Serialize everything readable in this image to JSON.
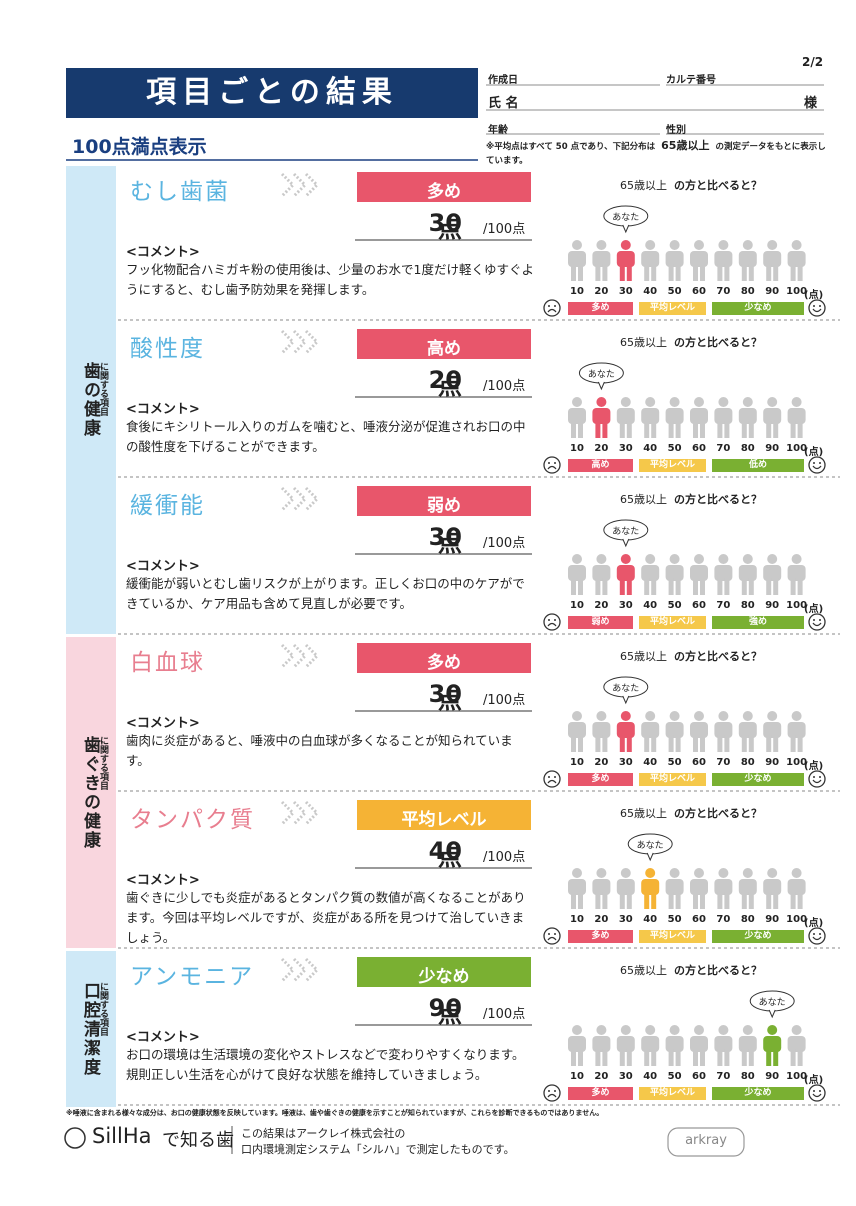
{
  "header": {
    "title": "項目ごとの結果",
    "page": "2/2",
    "subtitle": "100点満点表示",
    "created_label": "作成日",
    "chart_no_label": "カルテ番号",
    "name_label": "氏 名",
    "honorific": "様",
    "age_label": "年齢",
    "sex_label": "性別",
    "note_prefix": "※平均点はすべて 50 点であり、下記分布は",
    "note_age": "65歳以上",
    "note_suffix": "の測定データをもとに表示しています。"
  },
  "common": {
    "comment_label": "<コメント>",
    "max": "/100点",
    "score_unit": "点",
    "compare_age": "65歳以上",
    "compare_text": "の方と比べると？",
    "you": "あなた",
    "scale": [
      10,
      20,
      30,
      40,
      50,
      60,
      70,
      80,
      90,
      100
    ],
    "scale_unit": "(点)"
  },
  "groups": [
    {
      "label": "歯の健康",
      "sub": "に関する項目",
      "color": "#5ab4e0",
      "bg": "#cfe9f7",
      "items": [
        {
          "name": "むし歯菌",
          "level": "多め",
          "color": "#e8566b",
          "score": 30,
          "comment": "フッ化物配合ハミガキ粉の使用後は、少量のお水で1度だけ軽くゆすぐようにすると、むし歯予防効果を発揮します。",
          "bar_labels": [
            "多め",
            "平均レベル",
            "少なめ"
          ]
        },
        {
          "name": "酸性度",
          "level": "高め",
          "color": "#e8566b",
          "score": 20,
          "comment": "食後にキシリトール入りのガムを噛むと、唾液分泌が促進されお口の中の酸性度を下げることができます。",
          "bar_labels": [
            "高め",
            "平均レベル",
            "低め"
          ]
        },
        {
          "name": "緩衝能",
          "level": "弱め",
          "color": "#e8566b",
          "score": 30,
          "comment": "緩衝能が弱いとむし歯リスクが上がります。正しくお口の中のケアができているか、ケア用品も含めて見直しが必要です。",
          "bar_labels": [
            "弱め",
            "平均レベル",
            "強め"
          ]
        }
      ]
    },
    {
      "label": "歯ぐきの健康",
      "sub": "に関する項目",
      "color": "#e87e8f",
      "bg": "#f9d6de",
      "items": [
        {
          "name": "白血球",
          "level": "多め",
          "color": "#e8566b",
          "score": 30,
          "comment": "歯肉に炎症があると、唾液中の白血球が多くなることが知られています。",
          "bar_labels": [
            "多め",
            "平均レベル",
            "少なめ"
          ]
        },
        {
          "name": "タンパク質",
          "level": "平均レベル",
          "color": "#f5b335",
          "score": 40,
          "comment": "歯ぐきに少しでも炎症があるとタンパク質の数値が高くなることがあります。今回は平均レベルですが、炎症がある所を見つけて治していきましょう。",
          "bar_labels": [
            "多め",
            "平均レベル",
            "少なめ"
          ]
        }
      ]
    },
    {
      "label": "口腔清潔度",
      "sub": "に関する項目",
      "color": "#5ab4e0",
      "bg": "#cfe9f7",
      "items": [
        {
          "name": "アンモニア",
          "level": "少なめ",
          "color": "#7ab032",
          "score": 90,
          "comment": "お口の環境は生活環境の変化やストレスなどで変わりやすくなります。規則正しい生活を心がけて良好な状態を維持していきましょう。",
          "bar_labels": [
            "多め",
            "平均レベル",
            "少なめ"
          ]
        }
      ]
    }
  ],
  "footer": {
    "note": "※唾液に含まれる様々な成分は、お口の健康状態を反映しています。唾液は、歯や歯ぐきの健康を示すことが知られていますが、これらを診断できるものではありません。",
    "logo": "SillHa",
    "logo_suffix": "で知る歯",
    "line1": "この結果はアークレイ株式会社の",
    "line2": "口内環境測定システム「シルハ」で測定したものです。",
    "brand": "arkray"
  }
}
